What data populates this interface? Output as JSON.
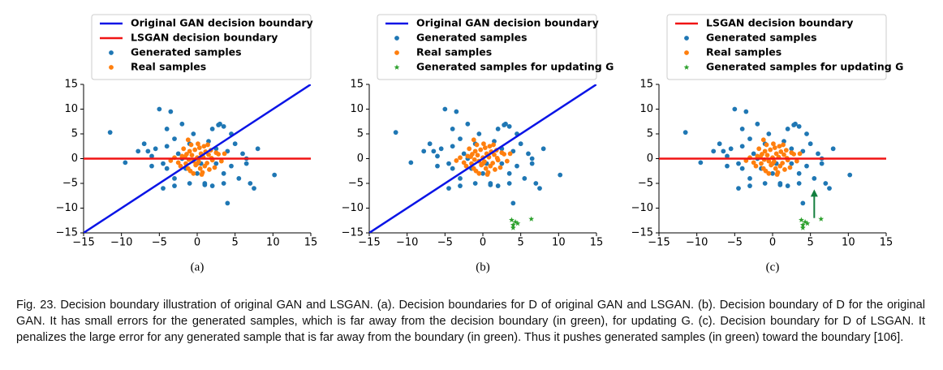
{
  "chart_data": [
    {
      "type": "scatter",
      "label": "(a)",
      "legend": "top",
      "xlim": [
        -15,
        15
      ],
      "ylim": [
        -15,
        15
      ],
      "xticks": [
        {
          "value": -15,
          "label": "−15"
        },
        {
          "value": -10,
          "label": "−10"
        },
        {
          "value": -5,
          "label": "−5"
        },
        0,
        5,
        10,
        15
      ],
      "yticks": [
        {
          "value": -15,
          "label": "−15"
        },
        {
          "value": -10,
          "label": "−10"
        },
        {
          "value": -5,
          "label": "−5"
        },
        0,
        5,
        10,
        15
      ],
      "series": [
        {
          "name": "Original GAN decision boundary",
          "kind": "line",
          "color": "#0a14e6",
          "x": [
            -15,
            15
          ],
          "values": [
            -15,
            15
          ]
        },
        {
          "name": "LSGAN decision boundary",
          "kind": "line",
          "color": "#f01414",
          "x": [
            -15,
            15
          ],
          "values": [
            0,
            0
          ]
        },
        {
          "name": "Generated samples",
          "kind": "scatter",
          "marker": "circle",
          "color": "#1f77b4",
          "x": [
            -11.5,
            -9.5,
            -7,
            -6.5,
            -6,
            -5.5,
            -5,
            -4.5,
            -4,
            -4,
            -3.5,
            -3,
            -3,
            -2.5,
            -2,
            -2,
            -1.5,
            -1,
            -1,
            -0.5,
            0,
            0.5,
            1,
            1.5,
            2,
            2.5,
            2.5,
            3,
            3.5,
            3.5,
            4,
            4.5,
            4.5,
            5,
            5.5,
            6,
            6.5,
            6.5,
            7,
            7.5,
            8,
            10.2,
            4,
            -4.5,
            -3,
            1,
            2,
            3.5,
            2.8,
            -6,
            -7.8,
            -4
          ],
          "values": [
            5.3,
            -0.8,
            3,
            1.5,
            0.5,
            2,
            10,
            -1,
            -2,
            6,
            9.5,
            4,
            -4,
            1,
            0,
            7,
            -2,
            3,
            -5,
            5,
            -3,
            -1,
            -5,
            3.5,
            6,
            2,
            -1,
            7,
            -3,
            -5,
            1.5,
            5,
            -1.5,
            3,
            -4,
            1,
            -1,
            0,
            -5,
            -6,
            2,
            -3.3,
            -9,
            -6,
            -5.5,
            -5.3,
            -5.5,
            6.5,
            6.8,
            -1.5,
            1.5,
            2.5
          ]
        },
        {
          "name": "Real samples",
          "kind": "scatter",
          "marker": "circle",
          "color": "#ff7f0e",
          "x": [
            -2,
            -1.5,
            -1,
            -0.5,
            0,
            0.5,
            1,
            1.5,
            2,
            2.5,
            -2.5,
            -1.8,
            -1.2,
            -0.7,
            -0.2,
            0.3,
            0.8,
            1.3,
            1.8,
            2.3,
            -3,
            -2.2,
            -1.4,
            -0.9,
            -0.3,
            0.2,
            0.9,
            1.6,
            2.8,
            3.2,
            -0.5,
            0.1,
            0.6,
            1.1,
            -1.1,
            -1.6,
            0.4,
            1.9,
            -0.8,
            3.6,
            -3.5,
            0,
            -1.2,
            1.4,
            0.7
          ],
          "values": [
            0.5,
            -1,
            1.5,
            -0.5,
            0.2,
            1,
            -1.5,
            0.8,
            -0.3,
            1.2,
            -0.8,
            2,
            -2,
            0.7,
            -1.3,
            2.2,
            0.3,
            -0.9,
            1.7,
            -1.8,
            0.2,
            -1.5,
            0.9,
            -2.5,
            1.8,
            -0.6,
            2.5,
            -2.2,
            0.9,
            -0.5,
            -3,
            3,
            -3.2,
            1.4,
            -0.2,
            0.4,
            -2,
            0.1,
            2.8,
            1,
            -0.4,
            -1,
            3.8,
            2.8,
            -2.8
          ]
        }
      ]
    },
    {
      "type": "scatter",
      "label": "(b)",
      "legend": "top",
      "xlim": [
        -15,
        15
      ],
      "ylim": [
        -15,
        15
      ],
      "xticks": [
        {
          "value": -15,
          "label": "−15"
        },
        {
          "value": -10,
          "label": "−10"
        },
        {
          "value": -5,
          "label": "−5"
        },
        0,
        5,
        10,
        15
      ],
      "yticks": [
        {
          "value": -15,
          "label": "−15"
        },
        {
          "value": -10,
          "label": "−10"
        },
        {
          "value": -5,
          "label": "−5"
        },
        0,
        5,
        10,
        15
      ],
      "series": [
        {
          "name": "Original GAN decision boundary",
          "kind": "line",
          "color": "#0a14e6",
          "x": [
            -15,
            15
          ],
          "values": [
            -15,
            15
          ]
        },
        {
          "name": "Generated samples",
          "kind": "scatter",
          "marker": "circle",
          "color": "#1f77b4",
          "x": [
            -11.5,
            -9.5,
            -7,
            -6.5,
            -6,
            -5.5,
            -5,
            -4.5,
            -4,
            -4,
            -3.5,
            -3,
            -3,
            -2.5,
            -2,
            -2,
            -1.5,
            -1,
            -1,
            -0.5,
            0,
            0.5,
            1,
            1.5,
            2,
            2.5,
            2.5,
            3,
            3.5,
            3.5,
            4,
            4.5,
            4.5,
            5,
            5.5,
            6,
            6.5,
            6.5,
            7,
            7.5,
            8,
            10.2,
            4,
            -4.5,
            -3,
            1,
            2,
            3.5,
            2.8,
            -6,
            -7.8,
            -4
          ],
          "values": [
            5.3,
            -0.8,
            3,
            1.5,
            0.5,
            2,
            10,
            -1,
            -2,
            6,
            9.5,
            4,
            -4,
            1,
            0,
            7,
            -2,
            3,
            -5,
            5,
            -3,
            -1,
            -5,
            3.5,
            6,
            2,
            -1,
            7,
            -3,
            -5,
            1.5,
            5,
            -1.5,
            3,
            -4,
            1,
            -1,
            0,
            -5,
            -6,
            2,
            -3.3,
            -9,
            -6,
            -5.5,
            -5.3,
            -5.5,
            6.5,
            6.8,
            -1.5,
            1.5,
            2.5
          ]
        },
        {
          "name": "Real samples",
          "kind": "scatter",
          "marker": "circle",
          "color": "#ff7f0e",
          "x": [
            -2,
            -1.5,
            -1,
            -0.5,
            0,
            0.5,
            1,
            1.5,
            2,
            2.5,
            -2.5,
            -1.8,
            -1.2,
            -0.7,
            -0.2,
            0.3,
            0.8,
            1.3,
            1.8,
            2.3,
            -3,
            -2.2,
            -1.4,
            -0.9,
            -0.3,
            0.2,
            0.9,
            1.6,
            2.8,
            3.2,
            -0.5,
            0.1,
            0.6,
            1.1,
            -1.1,
            -1.6,
            0.4,
            1.9,
            -0.8,
            3.6,
            -3.5,
            0,
            -1.2,
            1.4,
            0.7
          ],
          "values": [
            0.5,
            -1,
            1.5,
            -0.5,
            0.2,
            1,
            -1.5,
            0.8,
            -0.3,
            1.2,
            -0.8,
            2,
            -2,
            0.7,
            -1.3,
            2.2,
            0.3,
            -0.9,
            1.7,
            -1.8,
            0.2,
            -1.5,
            0.9,
            -2.5,
            1.8,
            -0.6,
            2.5,
            -2.2,
            0.9,
            -0.5,
            -3,
            3,
            -3.2,
            1.4,
            -0.2,
            0.4,
            -2,
            0.1,
            2.8,
            1,
            -0.4,
            -1,
            3.8,
            2.8,
            -2.8
          ]
        },
        {
          "name": "Generated samples for updating G",
          "kind": "scatter",
          "marker": "star",
          "color": "#2ca02c",
          "x": [
            3.8,
            4.3,
            4,
            4.6,
            4,
            6.4
          ],
          "values": [
            -12.4,
            -12.8,
            -13.4,
            -13.1,
            -14,
            -12.2
          ]
        }
      ]
    },
    {
      "type": "scatter",
      "label": "(c)",
      "legend": "top",
      "xlim": [
        -15,
        15
      ],
      "ylim": [
        -15,
        15
      ],
      "xticks": [
        {
          "value": -15,
          "label": "−15"
        },
        {
          "value": -10,
          "label": "−10"
        },
        {
          "value": -5,
          "label": "−5"
        },
        0,
        5,
        10,
        15
      ],
      "yticks": [
        {
          "value": -15,
          "label": "−15"
        },
        {
          "value": -10,
          "label": "−10"
        },
        {
          "value": -5,
          "label": "−5"
        },
        0,
        5,
        10,
        15
      ],
      "series": [
        {
          "name": "LSGAN decision boundary",
          "kind": "line",
          "color": "#f01414",
          "x": [
            -15,
            15
          ],
          "values": [
            0,
            0
          ]
        },
        {
          "name": "Generated samples",
          "kind": "scatter",
          "marker": "circle",
          "color": "#1f77b4",
          "x": [
            -11.5,
            -9.5,
            -7,
            -6.5,
            -6,
            -5.5,
            -5,
            -4.5,
            -4,
            -4,
            -3.5,
            -3,
            -3,
            -2.5,
            -2,
            -2,
            -1.5,
            -1,
            -1,
            -0.5,
            0,
            0.5,
            1,
            1.5,
            2,
            2.5,
            2.5,
            3,
            3.5,
            3.5,
            4,
            4.5,
            4.5,
            5,
            5.5,
            6,
            6.5,
            6.5,
            7,
            7.5,
            8,
            10.2,
            4,
            -4.5,
            -3,
            1,
            2,
            3.5,
            2.8,
            -6,
            -7.8,
            -4
          ],
          "values": [
            5.3,
            -0.8,
            3,
            1.5,
            0.5,
            2,
            10,
            -1,
            -2,
            6,
            9.5,
            4,
            -4,
            1,
            0,
            7,
            -2,
            3,
            -5,
            5,
            -3,
            -1,
            -5,
            3.5,
            6,
            2,
            -1,
            7,
            -3,
            -5,
            1.5,
            5,
            -1.5,
            3,
            -4,
            1,
            -1,
            0,
            -5,
            -6,
            2,
            -3.3,
            -9,
            -6,
            -5.5,
            -5.3,
            -5.5,
            6.5,
            6.8,
            -1.5,
            1.5,
            2.5
          ]
        },
        {
          "name": "Real samples",
          "kind": "scatter",
          "marker": "circle",
          "color": "#ff7f0e",
          "x": [
            -2,
            -1.5,
            -1,
            -0.5,
            0,
            0.5,
            1,
            1.5,
            2,
            2.5,
            -2.5,
            -1.8,
            -1.2,
            -0.7,
            -0.2,
            0.3,
            0.8,
            1.3,
            1.8,
            2.3,
            -3,
            -2.2,
            -1.4,
            -0.9,
            -0.3,
            0.2,
            0.9,
            1.6,
            2.8,
            3.2,
            -0.5,
            0.1,
            0.6,
            1.1,
            -1.1,
            -1.6,
            0.4,
            1.9,
            -0.8,
            3.6,
            -3.5,
            0,
            -1.2,
            1.4,
            0.7
          ],
          "values": [
            0.5,
            -1,
            1.5,
            -0.5,
            0.2,
            1,
            -1.5,
            0.8,
            -0.3,
            1.2,
            -0.8,
            2,
            -2,
            0.7,
            -1.3,
            2.2,
            0.3,
            -0.9,
            1.7,
            -1.8,
            0.2,
            -1.5,
            0.9,
            -2.5,
            1.8,
            -0.6,
            2.5,
            -2.2,
            0.9,
            -0.5,
            -3,
            3,
            -3.2,
            1.4,
            -0.2,
            0.4,
            -2,
            0.1,
            2.8,
            1,
            -0.4,
            -1,
            3.8,
            2.8,
            -2.8
          ]
        },
        {
          "name": "Generated samples for updating G",
          "kind": "scatter",
          "marker": "star",
          "color": "#2ca02c",
          "x": [
            3.8,
            4.3,
            4,
            4.6,
            4,
            6.4
          ],
          "values": [
            -12.4,
            -12.8,
            -13.4,
            -13.1,
            -14,
            -12.2
          ]
        }
      ],
      "arrows": [
        {
          "x": 5.5,
          "y": -12,
          "x2": 5.5,
          "y2": -6.2,
          "color": "#137f3e"
        }
      ]
    }
  ],
  "caption": "Fig. 23. Decision boundary illustration of original GAN and LSGAN. (a). Decision boundaries for D of original GAN and LSGAN. (b). Decision boundary of D for the original GAN. It has small errors for the generated samples, which is far away from the decision boundary (in green), for updating G. (c). Decision boundary for D of LSGAN. It penalizes the large error for any generated sample that is far away from the boundary (in green). Thus it pushes generated samples (in green) toward the boundary [106]."
}
